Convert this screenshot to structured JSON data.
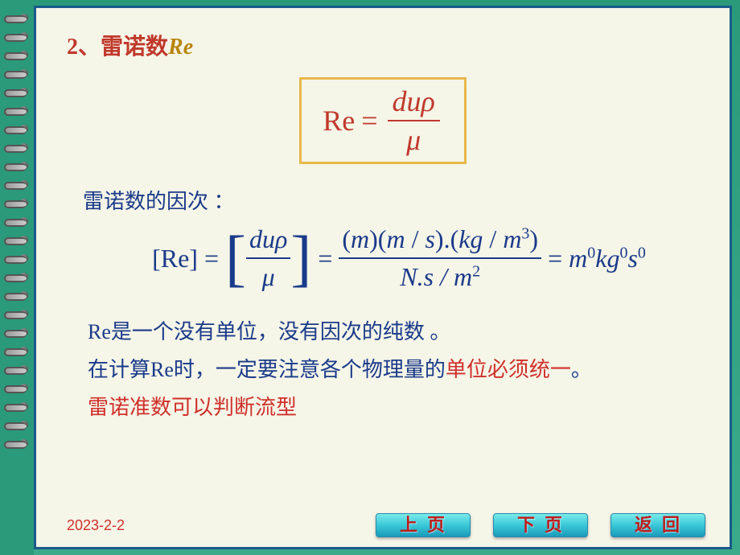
{
  "title": {
    "number": "2、",
    "text": "雷诺数",
    "symbol": "Re"
  },
  "formula_main": {
    "lhs": "Re",
    "eq": "=",
    "numerator": "duρ",
    "denominator": "μ",
    "border_color": "#e8b84a",
    "text_color": "#c0392b"
  },
  "dimension_label": "雷诺数的因次 ：",
  "dimension_formula": {
    "part1_open": "[",
    "part1_re": "Re",
    "part1_close": "]",
    "eq1": "=",
    "bracket1_num": "duρ",
    "bracket1_den": "μ",
    "eq2": "=",
    "expansion_num": "(m)(m / s).(kg / m³)",
    "expansion_den": "N.s / m²",
    "eq3": "=",
    "result_m": "m",
    "result_m_exp": "0",
    "result_kg": "kg",
    "result_kg_exp": "0",
    "result_s": "s",
    "result_s_exp": "0",
    "color": "#1a3a8a"
  },
  "paragraphs": {
    "p1": "Re是一个没有单位，没有因次的纯数 。",
    "p2_a": "在计算Re时，一定要注意各个物理量的",
    "p2_b": "单位必须统一",
    "p2_c": "。",
    "p3": "雷诺准数可以判断流型"
  },
  "date": "2023-2-2",
  "nav": {
    "prev": "上页",
    "next": "下页",
    "back": "返回"
  },
  "colors": {
    "page_bg": "#f5f5e8",
    "border": "#1a5a8a",
    "body_text": "#1a3a8a",
    "red": "#d0302a",
    "title_red": "#c0392b",
    "title_gold": "#b8860b",
    "button_text": "#c01a1a"
  }
}
